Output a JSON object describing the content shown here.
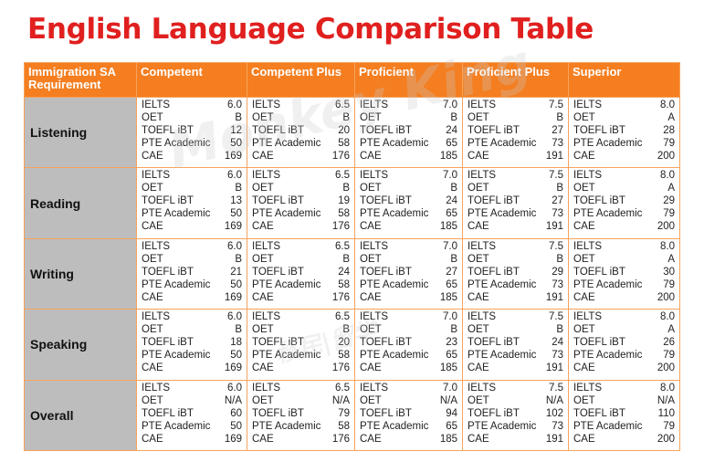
{
  "title": "English Language Comparison Table",
  "header": {
    "requirement": "Immigration SA Requirement",
    "levels": [
      "Competent",
      "Competent Plus",
      "Proficient",
      "Proficient Plus",
      "Superior"
    ]
  },
  "rows": [
    {
      "skill": "Listening",
      "cells": [
        [
          [
            "IELTS",
            "6.0"
          ],
          [
            "OET",
            "B"
          ],
          [
            "TOEFL iBT",
            "12"
          ],
          [
            "PTE Academic",
            "50"
          ],
          [
            "CAE",
            "169"
          ]
        ],
        [
          [
            "IELTS",
            "6.5"
          ],
          [
            "OET",
            "B"
          ],
          [
            "TOEFL iBT",
            "20"
          ],
          [
            "PTE Academic",
            "58"
          ],
          [
            "CAE",
            "176"
          ]
        ],
        [
          [
            "IELTS",
            "7.0"
          ],
          [
            "OET",
            "B"
          ],
          [
            "TOEFL iBT",
            "24"
          ],
          [
            "PTE Academic",
            "65"
          ],
          [
            "CAE",
            "185"
          ]
        ],
        [
          [
            "IELTS",
            "7.5"
          ],
          [
            "OET",
            "B"
          ],
          [
            "TOEFL iBT",
            "27"
          ],
          [
            "PTE Academic",
            "73"
          ],
          [
            "CAE",
            "191"
          ]
        ],
        [
          [
            "IELTS",
            "8.0"
          ],
          [
            "OET",
            "A"
          ],
          [
            "TOEFL iBT",
            "28"
          ],
          [
            "PTE Academic",
            "79"
          ],
          [
            "CAE",
            "200"
          ]
        ]
      ]
    },
    {
      "skill": "Reading",
      "cells": [
        [
          [
            "IELTS",
            "6.0"
          ],
          [
            "OET",
            "B"
          ],
          [
            "TOEFL iBT",
            "13"
          ],
          [
            "PTE Academic",
            "50"
          ],
          [
            "CAE",
            "169"
          ]
        ],
        [
          [
            "IELTS",
            "6.5"
          ],
          [
            "OET",
            "B"
          ],
          [
            "TOEFL iBT",
            "19"
          ],
          [
            "PTE Academic",
            "58"
          ],
          [
            "CAE",
            "176"
          ]
        ],
        [
          [
            "IELTS",
            "7.0"
          ],
          [
            "OET",
            "B"
          ],
          [
            "TOEFL iBT",
            "24"
          ],
          [
            "PTE Academic",
            "65"
          ],
          [
            "CAE",
            "185"
          ]
        ],
        [
          [
            "IELTS",
            "7.5"
          ],
          [
            "OET",
            "B"
          ],
          [
            "TOEFL iBT",
            "27"
          ],
          [
            "PTE Academic",
            "73"
          ],
          [
            "CAE",
            "191"
          ]
        ],
        [
          [
            "IELTS",
            "8.0"
          ],
          [
            "OET",
            "A"
          ],
          [
            "TOEFL iBT",
            "29"
          ],
          [
            "PTE Academic",
            "79"
          ],
          [
            "CAE",
            "200"
          ]
        ]
      ]
    },
    {
      "skill": "Writing",
      "cells": [
        [
          [
            "IELTS",
            "6.0"
          ],
          [
            "OET",
            "B"
          ],
          [
            "TOEFL iBT",
            "21"
          ],
          [
            "PTE Academic",
            "50"
          ],
          [
            "CAE",
            "169"
          ]
        ],
        [
          [
            "IELTS",
            "6.5"
          ],
          [
            "OET",
            "B"
          ],
          [
            "TOEFL iBT",
            "24"
          ],
          [
            "PTE Academic",
            "58"
          ],
          [
            "CAE",
            "176"
          ]
        ],
        [
          [
            "IELTS",
            "7.0"
          ],
          [
            "OET",
            "B"
          ],
          [
            "TOEFL iBT",
            "27"
          ],
          [
            "PTE Academic",
            "65"
          ],
          [
            "CAE",
            "185"
          ]
        ],
        [
          [
            "IELTS",
            "7.5"
          ],
          [
            "OET",
            "B"
          ],
          [
            "TOEFL iBT",
            "29"
          ],
          [
            "PTE Academic",
            "73"
          ],
          [
            "CAE",
            "191"
          ]
        ],
        [
          [
            "IELTS",
            "8.0"
          ],
          [
            "OET",
            "A"
          ],
          [
            "TOEFL iBT",
            "30"
          ],
          [
            "PTE Academic",
            "79"
          ],
          [
            "CAE",
            "200"
          ]
        ]
      ]
    },
    {
      "skill": "Speaking",
      "cells": [
        [
          [
            "IELTS",
            "6.0"
          ],
          [
            "OET",
            "B"
          ],
          [
            "TOEFL iBT",
            "18"
          ],
          [
            "PTE Academic",
            "50"
          ],
          [
            "CAE",
            "169"
          ]
        ],
        [
          [
            "IELTS",
            "6.5"
          ],
          [
            "OET",
            "B"
          ],
          [
            "TOEFL iBT",
            "20"
          ],
          [
            "PTE Academic",
            "58"
          ],
          [
            "CAE",
            "176"
          ]
        ],
        [
          [
            "IELTS",
            "7.0"
          ],
          [
            "OET",
            "B"
          ],
          [
            "TOEFL iBT",
            "23"
          ],
          [
            "PTE Academic",
            "65"
          ],
          [
            "CAE",
            "185"
          ]
        ],
        [
          [
            "IELTS",
            "7.5"
          ],
          [
            "OET",
            "B"
          ],
          [
            "TOEFL iBT",
            "24"
          ],
          [
            "PTE Academic",
            "73"
          ],
          [
            "CAE",
            "191"
          ]
        ],
        [
          [
            "IELTS",
            "8.0"
          ],
          [
            "OET",
            "A"
          ],
          [
            "TOEFL iBT",
            "26"
          ],
          [
            "PTE Academic",
            "79"
          ],
          [
            "CAE",
            "200"
          ]
        ]
      ]
    },
    {
      "skill": "Overall",
      "cells": [
        [
          [
            "IELTS",
            "6.0"
          ],
          [
            "OET",
            "N/A"
          ],
          [
            "TOEFL iBT",
            "60"
          ],
          [
            "PTE Academic",
            "50"
          ],
          [
            "CAE",
            "169"
          ]
        ],
        [
          [
            "IELTS",
            "6.5"
          ],
          [
            "OET",
            "N/A"
          ],
          [
            "TOEFL iBT",
            "79"
          ],
          [
            "PTE Academic",
            "58"
          ],
          [
            "CAE",
            "176"
          ]
        ],
        [
          [
            "IELTS",
            "7.0"
          ],
          [
            "OET",
            "N/A"
          ],
          [
            "TOEFL iBT",
            "94"
          ],
          [
            "PTE Academic",
            "65"
          ],
          [
            "CAE",
            "185"
          ]
        ],
        [
          [
            "IELTS",
            "7.5"
          ],
          [
            "OET",
            "N/A"
          ],
          [
            "TOEFL iBT",
            "102"
          ],
          [
            "PTE Academic",
            "73"
          ],
          [
            "CAE",
            "191"
          ]
        ],
        [
          [
            "IELTS",
            "8.0"
          ],
          [
            "OET",
            "N/A"
          ],
          [
            "TOEFL iBT",
            "110"
          ],
          [
            "PTE Academic",
            "79"
          ],
          [
            "CAE",
            "200"
          ]
        ]
      ]
    }
  ],
  "watermark": {
    "brand": "Monkey King",
    "tagline": "移民|留学"
  }
}
